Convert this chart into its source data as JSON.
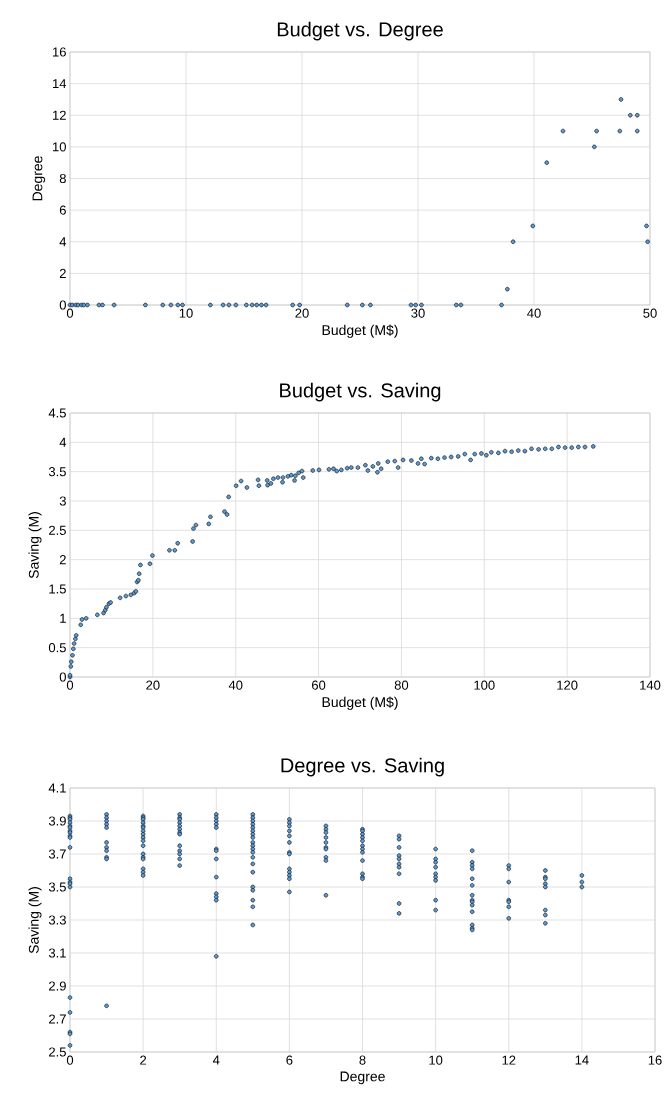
{
  "chart_data": [
    {
      "type": "scatter",
      "title": "Budget vs. Degree",
      "xlabel": "Budget (M$)",
      "ylabel": "Degree",
      "color": "#5b9bd5",
      "marker": "circle",
      "grid": true,
      "xlim": [
        0,
        50
      ],
      "ylim": [
        0,
        16
      ],
      "xticks": [
        0,
        10,
        20,
        30,
        40,
        50
      ],
      "yticks": [
        0,
        2,
        4,
        6,
        8,
        10,
        12,
        14,
        16
      ],
      "x": [
        0,
        0.2,
        0.5,
        0.7,
        1,
        1.2,
        1.5,
        2.5,
        2.8,
        3.8,
        6.5,
        8,
        8.7,
        9.3,
        9.7,
        12.1,
        13.2,
        13.7,
        14.3,
        15.2,
        15.7,
        16.1,
        16.5,
        16.9,
        19.2,
        19.8,
        23.9,
        25.2,
        25.9,
        29.4,
        29.8,
        30.3,
        33.3,
        33.7,
        37.2,
        37.7,
        38.2,
        39.9,
        41.1,
        42.5,
        45.2,
        45.4,
        47.4,
        47.5,
        48.3,
        48.9,
        48.9,
        49.7,
        49.8
      ],
      "values": [
        0,
        0,
        0,
        0,
        0,
        0,
        0,
        0,
        0,
        0,
        0,
        0,
        0,
        0,
        0,
        0,
        0,
        0,
        0,
        0,
        0,
        0,
        0,
        0,
        0,
        0,
        0,
        0,
        0,
        0,
        0,
        0,
        0,
        0,
        0,
        1,
        4,
        5,
        9,
        11,
        10,
        11,
        11,
        13,
        12,
        12,
        11,
        5,
        4
      ]
    },
    {
      "type": "scatter",
      "title": "Budget vs. Saving",
      "xlabel": "Budget (M$)",
      "ylabel": "Saving (M)",
      "color": "#5b9bd5",
      "marker": "circle",
      "grid": true,
      "xlim": [
        0,
        140
      ],
      "ylim": [
        0,
        4.5
      ],
      "xticks": [
        0,
        20,
        40,
        60,
        80,
        100,
        120,
        140
      ],
      "yticks": [
        0,
        0.5,
        1,
        1.5,
        2,
        2.5,
        3,
        3.5,
        4,
        4.5
      ],
      "x": [
        0,
        0,
        0.2,
        0.3,
        0.6,
        0.8,
        1,
        1.3,
        1.5,
        2.6,
        2.9,
        3.9,
        6.6,
        8.1,
        8.5,
        8.8,
        9.4,
        9.8,
        12.1,
        13.5,
        14.7,
        15.5,
        15.9,
        16.2,
        16.5,
        16.7,
        17.0,
        19.3,
        19.9,
        24,
        25.3,
        26,
        29.6,
        29.8,
        30.4,
        33.5,
        33.9,
        37.3,
        37.9,
        38.3,
        40.1,
        41.3,
        42.7,
        45.4,
        45.6,
        47.6,
        47.7,
        48.5,
        49.1,
        50.2,
        51.3,
        51.4,
        52.6,
        53.4,
        54.2,
        54.4,
        55.2,
        56,
        56.3,
        58.6,
        60.1,
        62.5,
        63.6,
        64.4,
        65.5,
        66.9,
        67.9,
        69.5,
        71.3,
        71.9,
        73.1,
        74.4,
        74.2,
        75.1,
        76.7,
        78.4,
        79.2,
        80.4,
        82.4,
        84,
        84.8,
        85.6,
        87.2,
        88.8,
        90.4,
        92,
        93.7,
        95.3,
        96.7,
        97.7,
        99.3,
        100.5,
        101.7,
        103.4,
        105,
        106.6,
        108.2,
        109.8,
        111.4,
        113.1,
        114.7,
        116.3,
        117.9,
        119.5,
        121.1,
        122.7,
        124.3,
        126.3
      ],
      "values": [
        0,
        0.03,
        0.18,
        0.26,
        0.37,
        0.48,
        0.57,
        0.65,
        0.71,
        0.89,
        0.98,
        1.0,
        1.06,
        1.09,
        1.14,
        1.19,
        1.25,
        1.27,
        1.35,
        1.38,
        1.4,
        1.43,
        1.46,
        1.62,
        1.65,
        1.76,
        1.91,
        1.93,
        2.07,
        2.16,
        2.16,
        2.28,
        2.31,
        2.53,
        2.59,
        2.61,
        2.73,
        2.82,
        2.77,
        3.07,
        3.26,
        3.34,
        3.23,
        3.36,
        3.26,
        3.35,
        3.27,
        3.3,
        3.38,
        3.4,
        3.32,
        3.4,
        3.42,
        3.44,
        3.35,
        3.43,
        3.48,
        3.51,
        3.4,
        3.52,
        3.53,
        3.54,
        3.55,
        3.51,
        3.53,
        3.56,
        3.57,
        3.57,
        3.61,
        3.52,
        3.59,
        3.64,
        3.49,
        3.55,
        3.67,
        3.68,
        3.57,
        3.7,
        3.69,
        3.64,
        3.72,
        3.63,
        3.73,
        3.72,
        3.74,
        3.75,
        3.76,
        3.8,
        3.7,
        3.8,
        3.81,
        3.78,
        3.83,
        3.82,
        3.85,
        3.84,
        3.86,
        3.85,
        3.89,
        3.88,
        3.89,
        3.89,
        3.92,
        3.91,
        3.91,
        3.92,
        3.92,
        3.93
      ]
    },
    {
      "type": "scatter",
      "title": "Degree vs. Saving",
      "xlabel": "Degree",
      "ylabel": "Saving (M)",
      "color": "#5b9bd5",
      "marker": "circle",
      "grid": true,
      "xlim": [
        0,
        16
      ],
      "ylim": [
        2.5,
        4.1
      ],
      "xticks": [
        0,
        2,
        4,
        6,
        8,
        10,
        12,
        14,
        16
      ],
      "yticks": [
        2.5,
        2.7,
        2.9,
        3.1,
        3.3,
        3.5,
        3.7,
        3.9,
        4.1
      ],
      "x": [
        0,
        0,
        0,
        0,
        0,
        0,
        0,
        0,
        0,
        0,
        0,
        0,
        0,
        0,
        0,
        0,
        0,
        0,
        0,
        0,
        1,
        1,
        1,
        1,
        1,
        1,
        1,
        1,
        1,
        1,
        1,
        2,
        2,
        2,
        2,
        2,
        2,
        2,
        2,
        2,
        2,
        2,
        2,
        2,
        2,
        2,
        2,
        2,
        3,
        3,
        3,
        3,
        3,
        3,
        3,
        3,
        3,
        3,
        3,
        3,
        3,
        4,
        4,
        4,
        4,
        4,
        4,
        4,
        4,
        4,
        4,
        4,
        4,
        4,
        5,
        5,
        5,
        5,
        5,
        5,
        5,
        5,
        5,
        5,
        5,
        5,
        5,
        5,
        5,
        5,
        5,
        5,
        5,
        5,
        6,
        6,
        6,
        6,
        6,
        6,
        6,
        6,
        6,
        6,
        6,
        6,
        6,
        7,
        7,
        7,
        7,
        7,
        7,
        7,
        7,
        7,
        7,
        8,
        8,
        8,
        8,
        8,
        8,
        8,
        8,
        8,
        8,
        8,
        8,
        9,
        9,
        9,
        9,
        9,
        9,
        9,
        9,
        9,
        9,
        10,
        10,
        10,
        10,
        10,
        10,
        10,
        10,
        10,
        11,
        11,
        11,
        11,
        11,
        11,
        11,
        11,
        11,
        11,
        11,
        11,
        11,
        11,
        12,
        12,
        12,
        12,
        12,
        12,
        12,
        13,
        13,
        13,
        13,
        13,
        13,
        13,
        13,
        14,
        14,
        14
      ],
      "values": [
        3.93,
        3.92,
        3.91,
        3.89,
        3.87,
        3.86,
        3.84,
        3.83,
        3.81,
        3.8,
        3.74,
        3.55,
        3.53,
        3.52,
        3.5,
        2.83,
        2.74,
        2.62,
        2.61,
        2.54,
        3.94,
        3.92,
        3.9,
        3.88,
        3.86,
        3.77,
        3.74,
        3.72,
        3.68,
        3.67,
        2.78,
        3.93,
        3.92,
        3.91,
        3.89,
        3.87,
        3.86,
        3.84,
        3.82,
        3.8,
        3.78,
        3.75,
        3.7,
        3.68,
        3.67,
        3.61,
        3.59,
        3.57,
        3.94,
        3.92,
        3.91,
        3.89,
        3.87,
        3.85,
        3.83,
        3.82,
        3.75,
        3.72,
        3.7,
        3.67,
        3.63,
        3.94,
        3.92,
        3.9,
        3.88,
        3.86,
        3.73,
        3.72,
        3.67,
        3.56,
        3.46,
        3.44,
        3.42,
        3.08,
        3.94,
        3.92,
        3.9,
        3.88,
        3.86,
        3.84,
        3.82,
        3.8,
        3.77,
        3.75,
        3.73,
        3.71,
        3.68,
        3.64,
        3.59,
        3.5,
        3.48,
        3.42,
        3.38,
        3.27,
        3.91,
        3.89,
        3.87,
        3.84,
        3.81,
        3.77,
        3.71,
        3.7,
        3.61,
        3.59,
        3.57,
        3.55,
        3.47,
        3.87,
        3.85,
        3.83,
        3.8,
        3.77,
        3.74,
        3.73,
        3.68,
        3.66,
        3.45,
        3.85,
        3.84,
        3.82,
        3.8,
        3.78,
        3.75,
        3.73,
        3.71,
        3.66,
        3.58,
        3.56,
        3.55,
        3.81,
        3.79,
        3.74,
        3.69,
        3.67,
        3.64,
        3.62,
        3.58,
        3.4,
        3.34,
        3.73,
        3.67,
        3.65,
        3.62,
        3.58,
        3.56,
        3.54,
        3.42,
        3.36,
        3.72,
        3.65,
        3.63,
        3.61,
        3.55,
        3.51,
        3.45,
        3.42,
        3.41,
        3.39,
        3.35,
        3.27,
        3.25,
        3.24,
        3.63,
        3.61,
        3.53,
        3.42,
        3.41,
        3.38,
        3.31,
        3.6,
        3.56,
        3.55,
        3.52,
        3.5,
        3.36,
        3.33,
        3.28,
        3.57,
        3.53,
        3.5
      ]
    }
  ]
}
